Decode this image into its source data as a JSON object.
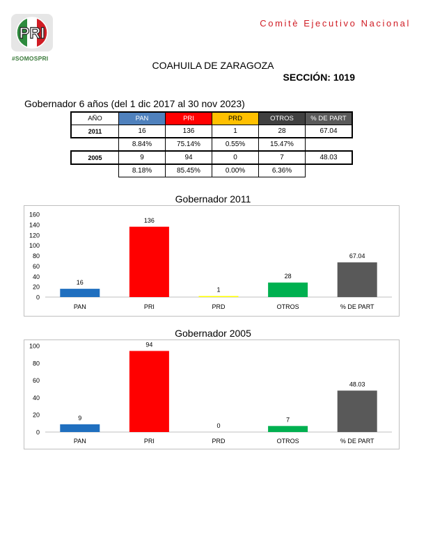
{
  "header": {
    "logo_text": "PRI",
    "hashtag": "#SOMOSPRI",
    "committee": "Comitè Ejecutivo Nacional",
    "state": "COAHUILA DE ZARAGOZA",
    "section": "SECCIÓN: 1019"
  },
  "period_title": "Gobernador 6 años (del 1 dic 2017 al 30 nov 2023)",
  "table": {
    "headers": [
      "AÑO",
      "PAN",
      "PRI",
      "PRD",
      "OTROS",
      "% DE PART"
    ],
    "rows": [
      {
        "year": "2011",
        "votes": [
          "16",
          "136",
          "1",
          "28",
          "67.04"
        ],
        "pct": [
          "8.84%",
          "75.14%",
          "0.55%",
          "15.47%"
        ]
      },
      {
        "year": "2005",
        "votes": [
          "9",
          "94",
          "0",
          "7",
          "48.03"
        ],
        "pct": [
          "8.18%",
          "85.45%",
          "0.00%",
          "6.36%"
        ]
      }
    ]
  },
  "colors": {
    "PAN": "#1f6fbf",
    "PRI": "#ff0000",
    "PRD": "#ffc000",
    "OTROS": "#00b050",
    "PART": "#595959",
    "header_year": "#ffffff",
    "brand_red": "#d01c24",
    "brand_green": "#2e8b3e"
  },
  "chart_data": [
    {
      "type": "bar",
      "title": "Gobernador  2011",
      "categories": [
        "PAN",
        "PRI",
        "PRD",
        "OTROS",
        "% DE PART"
      ],
      "values": [
        16,
        136,
        1,
        28,
        67.04
      ],
      "value_labels": [
        "16",
        "136",
        "1",
        "28",
        "67.04"
      ],
      "colors": [
        "#1f6fbf",
        "#ff0000",
        "#ffff00",
        "#00b050",
        "#595959"
      ],
      "ylim": [
        0,
        160
      ],
      "yticks": [
        0,
        20,
        40,
        60,
        80,
        100,
        120,
        140,
        160
      ],
      "xlabel": "",
      "ylabel": "",
      "grid": false,
      "legend": "none"
    },
    {
      "type": "bar",
      "title": "Gobernador  2005",
      "categories": [
        "PAN",
        "PRI",
        "PRD",
        "OTROS",
        "% DE PART"
      ],
      "values": [
        9,
        94,
        0,
        7,
        48.03
      ],
      "value_labels": [
        "9",
        "94",
        "0",
        "7",
        "48.03"
      ],
      "colors": [
        "#1f6fbf",
        "#ff0000",
        "#ffff00",
        "#00b050",
        "#595959"
      ],
      "ylim": [
        0,
        100
      ],
      "yticks": [
        0,
        20,
        40,
        60,
        80,
        100
      ],
      "xlabel": "",
      "ylabel": "",
      "grid": false,
      "legend": "none"
    }
  ]
}
